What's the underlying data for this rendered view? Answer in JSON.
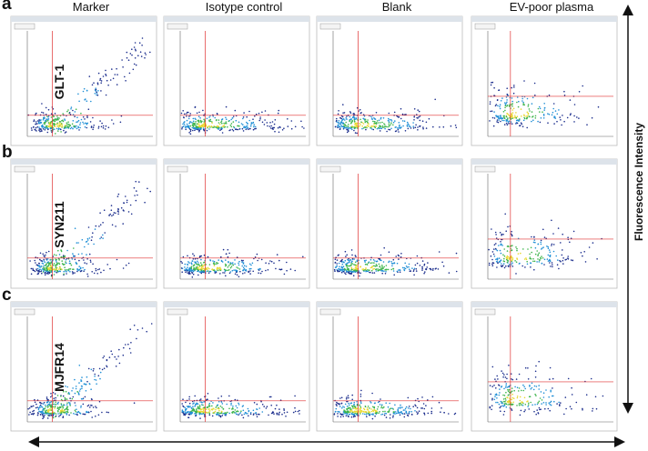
{
  "columns": [
    "Marker",
    "Isotype control",
    "Blank",
    "EV-poor plasma"
  ],
  "rows": [
    {
      "letter": "a",
      "label": "GLT-1"
    },
    {
      "letter": "b",
      "label": "SYN211"
    },
    {
      "letter": "c",
      "label": "MJFR14"
    }
  ],
  "axis_label": "Fluorescence Intensity"
}
